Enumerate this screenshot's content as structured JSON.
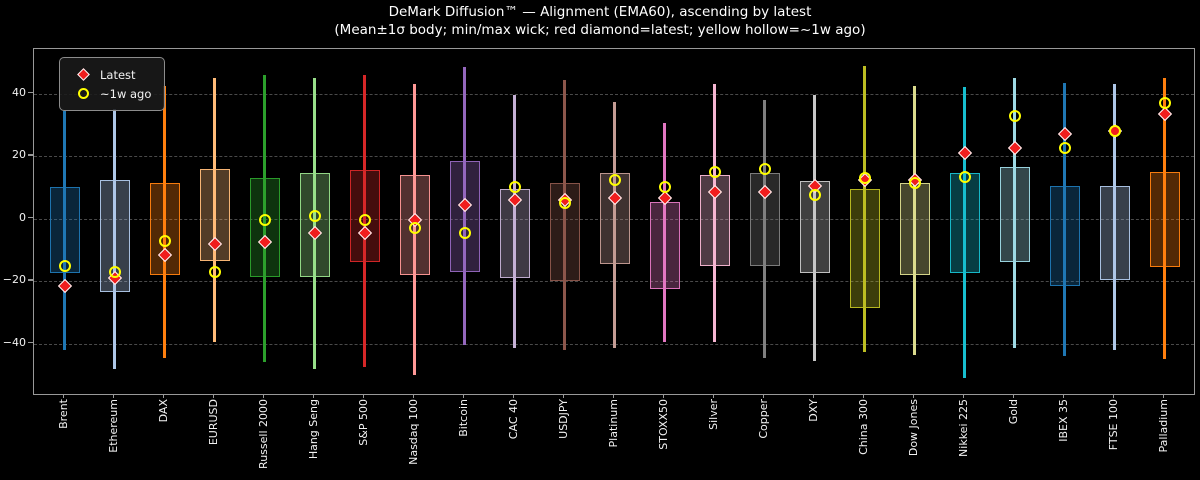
{
  "chart_data": {
    "type": "candlestick",
    "title": "DeMark Diffusion™ — Alignment (EMA60), ascending by latest",
    "subtitle": "(Mean±1σ body; min/max wick; red diamond=latest; yellow hollow=~1w ago)",
    "xlabel": "",
    "ylabel": "",
    "grid": "dashed-horizontal",
    "legend_position": "upper-left",
    "legend": [
      {
        "label": "Latest",
        "marker": "red-diamond"
      },
      {
        "label": "~1w ago",
        "marker": "yellow-hollow-circle"
      }
    ],
    "axis": {
      "ylim": [
        -56.1,
        54.3
      ],
      "yticks": [
        {
          "label": "40",
          "value": 40
        },
        {
          "label": "20",
          "value": 20
        },
        {
          "label": "0",
          "value": 0
        },
        {
          "label": "−20",
          "value": -20
        },
        {
          "label": "−40",
          "value": -40
        }
      ]
    },
    "style": {
      "background": "#000000",
      "latest_color": "#f01d1d",
      "week_ago_color": "#ffff00",
      "grid_color": "#4a4a4a",
      "spine_color": "#999999",
      "text_color": "#f2f2f2",
      "body_alpha": 0.32,
      "edge_alpha": 0.95
    },
    "instruments": [
      {
        "label": "Brent",
        "color": "#1f77b4",
        "min": -42,
        "max": 34.5,
        "body_low": -17.5,
        "body_high": 10,
        "latest": -21.5,
        "week_ago": -15
      },
      {
        "label": "Ethereum",
        "color": "#aec7e8",
        "min": -48,
        "max": 35,
        "body_low": -23.5,
        "body_high": 12.5,
        "latest": -19,
        "week_ago": -17
      },
      {
        "label": "DAX",
        "color": "#ff7f0e",
        "min": -44.5,
        "max": 42.5,
        "body_low": -18,
        "body_high": 11.5,
        "latest": -11.5,
        "week_ago": -7
      },
      {
        "label": "EURUSD",
        "color": "#ffbb78",
        "min": -39.5,
        "max": 45,
        "body_low": -13.5,
        "body_high": 16,
        "latest": -8,
        "week_ago": -17
      },
      {
        "label": "Russell 2000",
        "color": "#2ca02c",
        "min": -46,
        "max": 46,
        "body_low": -18.5,
        "body_high": 13,
        "latest": -7.5,
        "week_ago": -0.5
      },
      {
        "label": "Hang Seng",
        "color": "#98df8a",
        "min": -48,
        "max": 45,
        "body_low": -18.5,
        "body_high": 14.5,
        "latest": -4.5,
        "week_ago": 1
      },
      {
        "label": "S&P 500",
        "color": "#d62728",
        "min": -47.5,
        "max": 46,
        "body_low": -14,
        "body_high": 15.5,
        "latest": -4.5,
        "week_ago": -0.5
      },
      {
        "label": "Nasdaq 100",
        "color": "#ff9896",
        "min": -50,
        "max": 43,
        "body_low": -18,
        "body_high": 14,
        "latest": -0.5,
        "week_ago": -3
      },
      {
        "label": "Bitcoin",
        "color": "#9467bd",
        "min": -40.5,
        "max": 48.5,
        "body_low": -17,
        "body_high": 18.5,
        "latest": 4.5,
        "week_ago": -4.5
      },
      {
        "label": "CAC 40",
        "color": "#c5b0d5",
        "min": -41.5,
        "max": 39.5,
        "body_low": -19,
        "body_high": 9.5,
        "latest": 6,
        "week_ago": 10
      },
      {
        "label": "USDJPY",
        "color": "#8c564b",
        "min": -42,
        "max": 44.5,
        "body_low": -20,
        "body_high": 11.5,
        "latest": 6,
        "week_ago": 5
      },
      {
        "label": "Platinum",
        "color": "#c49c94",
        "min": -41.5,
        "max": 37.5,
        "body_low": -14.5,
        "body_high": 14.5,
        "latest": 6.5,
        "week_ago": 12.5
      },
      {
        "label": "STOXX50",
        "color": "#e377c2",
        "min": -39.5,
        "max": 30.5,
        "body_low": -22.5,
        "body_high": 5.5,
        "latest": 6.5,
        "week_ago": 10
      },
      {
        "label": "Silver",
        "color": "#f7b6d2",
        "min": -39.5,
        "max": 43,
        "body_low": -15,
        "body_high": 14,
        "latest": 8.5,
        "week_ago": 15
      },
      {
        "label": "Copper",
        "color": "#7f7f7f",
        "min": -44.5,
        "max": 38,
        "body_low": -15,
        "body_high": 14.5,
        "latest": 8.5,
        "week_ago": 16
      },
      {
        "label": "DXY",
        "color": "#c7c7c7",
        "min": -45.5,
        "max": 39.5,
        "body_low": -17.5,
        "body_high": 12,
        "latest": 10.5,
        "week_ago": 7.5
      },
      {
        "label": "China 300",
        "color": "#bcbd22",
        "min": -42.5,
        "max": 49,
        "body_low": -28.5,
        "body_high": 9.5,
        "latest": 12.5,
        "week_ago": 13
      },
      {
        "label": "Dow Jones",
        "color": "#dbdb8d",
        "min": -43.5,
        "max": 42.5,
        "body_low": -18,
        "body_high": 11.5,
        "latest": 12.5,
        "week_ago": 11.5
      },
      {
        "label": "Nikkei 225",
        "color": "#17becf",
        "min": -51,
        "max": 42,
        "body_low": -17.5,
        "body_high": 14.5,
        "latest": 21,
        "week_ago": 13.5
      },
      {
        "label": "Gold",
        "color": "#9edae5",
        "min": -41.5,
        "max": 45,
        "body_low": -14,
        "body_high": 16.5,
        "latest": 22.5,
        "week_ago": 33
      },
      {
        "label": "IBEX 35",
        "color": "#1f77b4",
        "min": -44,
        "max": 43.5,
        "body_low": -21.5,
        "body_high": 10.5,
        "latest": 27,
        "week_ago": 22.5
      },
      {
        "label": "FTSE 100",
        "color": "#aec7e8",
        "min": -42,
        "max": 43,
        "body_low": -19.5,
        "body_high": 10.5,
        "latest": 28,
        "week_ago": 28
      },
      {
        "label": "Palladium",
        "color": "#ff7f0e",
        "min": -45,
        "max": 45,
        "body_low": -15.5,
        "body_high": 15,
        "latest": 33.5,
        "week_ago": 37
      }
    ]
  }
}
